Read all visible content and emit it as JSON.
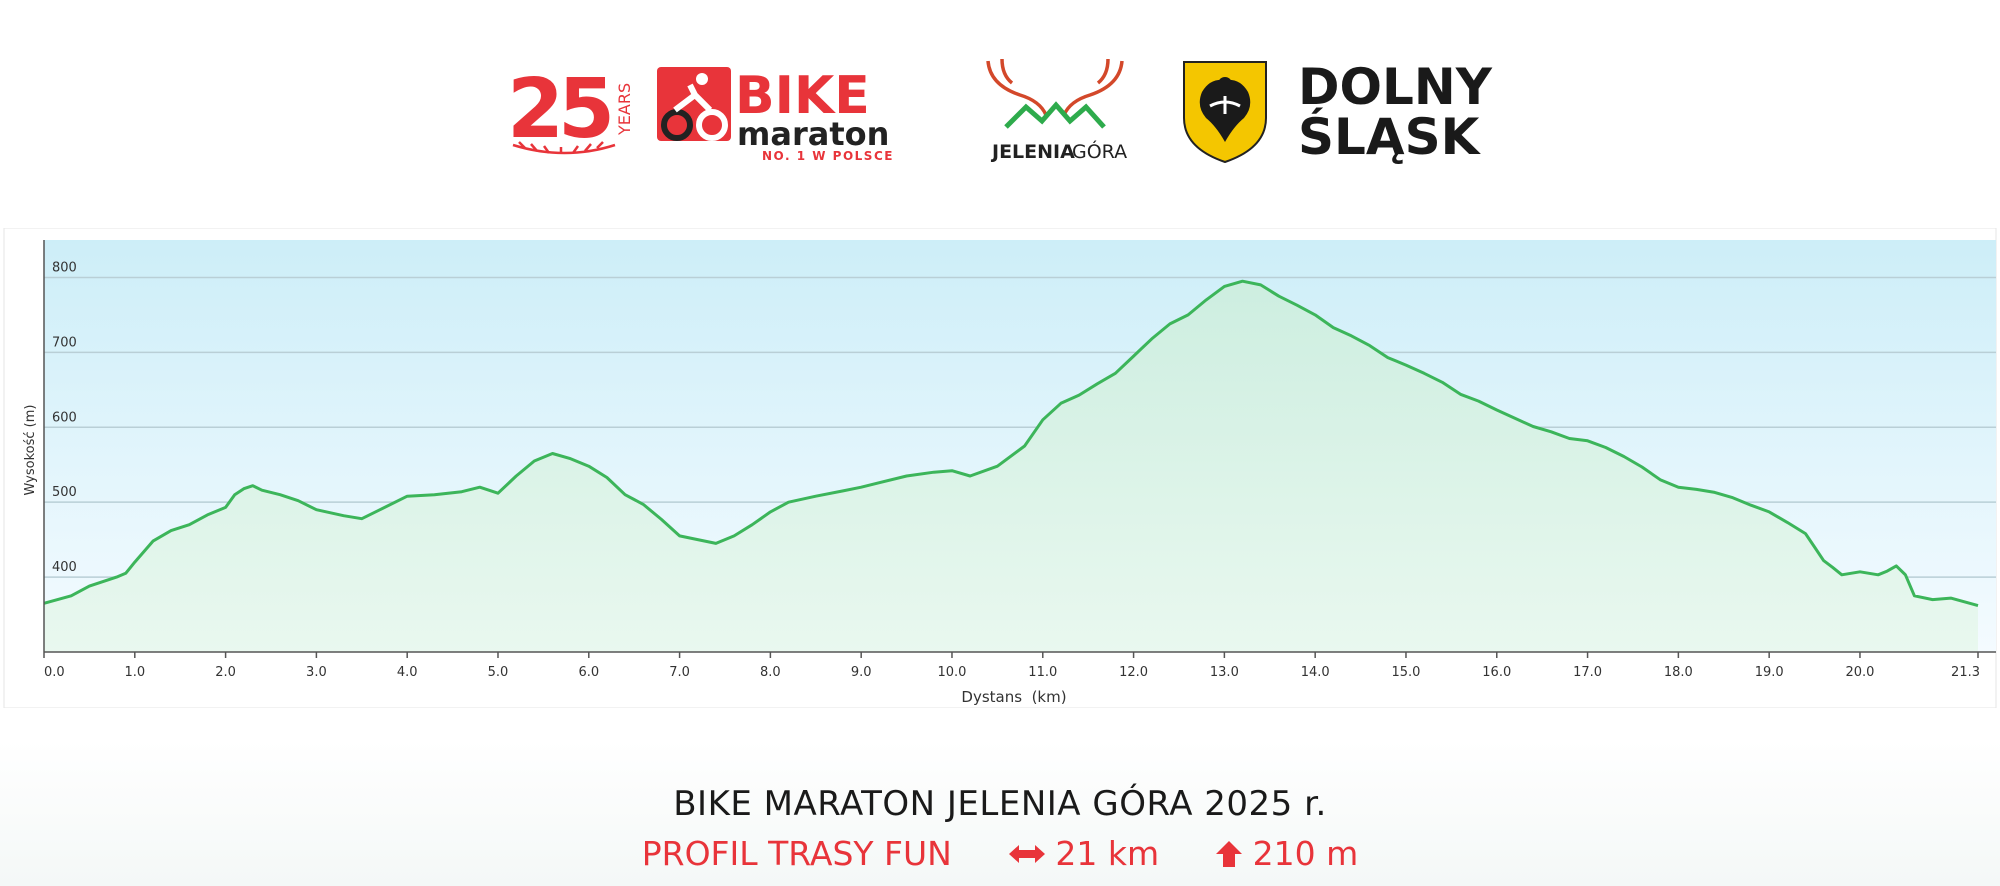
{
  "logos": {
    "years_number": "25",
    "years_word": "YEARS",
    "bike_word": "BIKE",
    "maraton_word": "maraton",
    "bike_slogan": "NO. 1 W POLSCE",
    "city_name_a": "JELENIA",
    "city_name_b": "GÓRA",
    "region_line1": "DOLNY",
    "region_line2": "ŚLĄSK"
  },
  "colors": {
    "brand_red": "#e8343a",
    "line_green": "#3cb55a",
    "sky_top": "#cdeef8",
    "sky_bottom": "#f4fbff"
  },
  "chart_data": {
    "type": "area",
    "xlabel": "Dystans  (km)",
    "ylabel": "Wysokość (m)",
    "xlim": [
      0,
      21.3
    ],
    "ylim": [
      300,
      850
    ],
    "x_ticks": [
      0,
      1,
      2,
      3,
      4,
      5,
      6,
      7,
      8,
      9,
      10,
      11,
      12,
      13,
      14,
      15,
      16,
      17,
      18,
      19,
      20,
      21.3
    ],
    "x_tick_labels": [
      "0.0",
      "1.0",
      "2.0",
      "3.0",
      "4.0",
      "5.0",
      "6.0",
      "7.0",
      "8.0",
      "9.0",
      "10.0",
      "11.0",
      "12.0",
      "13.0",
      "14.0",
      "15.0",
      "16.0",
      "17.0",
      "18.0",
      "19.0",
      "20.0",
      "21.3"
    ],
    "y_ticks": [
      400,
      500,
      600,
      700,
      800
    ],
    "y_tick_labels": [
      "400",
      "500",
      "600",
      "700",
      "800"
    ],
    "grid": true,
    "series": [
      {
        "x": [
          0,
          0.3,
          0.5,
          0.8,
          0.9,
          1.0,
          1.2,
          1.4,
          1.6,
          1.8,
          2.0,
          2.1,
          2.2,
          2.3,
          2.4,
          2.6,
          2.8,
          3.0,
          3.3,
          3.5,
          3.7,
          4.0,
          4.3,
          4.6,
          4.8,
          5.0,
          5.2,
          5.4,
          5.6,
          5.8,
          6.0,
          6.2,
          6.4,
          6.6,
          6.8,
          7.0,
          7.2,
          7.4,
          7.6,
          7.8,
          8.0,
          8.2,
          8.5,
          8.8,
          9.0,
          9.2,
          9.5,
          9.8,
          10.0,
          10.2,
          10.5,
          10.8,
          11.0,
          11.2,
          11.4,
          11.6,
          11.8,
          12.0,
          12.2,
          12.4,
          12.6,
          12.8,
          13.0,
          13.2,
          13.4,
          13.6,
          13.8,
          14.0,
          14.2,
          14.4,
          14.6,
          14.8,
          15.0,
          15.2,
          15.4,
          15.6,
          15.8,
          16.0,
          16.2,
          16.4,
          16.6,
          16.8,
          17.0,
          17.2,
          17.4,
          17.6,
          17.8,
          18.0,
          18.2,
          18.4,
          18.6,
          18.8,
          19.0,
          19.2,
          19.4,
          19.5,
          19.6,
          19.7,
          19.8,
          20.0,
          20.2,
          20.3,
          20.4,
          20.5,
          20.6,
          20.8,
          21.0,
          21.3
        ],
        "values": [
          365,
          375,
          388,
          400,
          405,
          420,
          448,
          462,
          470,
          483,
          493,
          510,
          518,
          522,
          516,
          510,
          502,
          490,
          482,
          478,
          490,
          508,
          510,
          514,
          520,
          512,
          535,
          555,
          565,
          558,
          548,
          533,
          510,
          497,
          477,
          455,
          450,
          445,
          455,
          470,
          487,
          500,
          508,
          515,
          520,
          526,
          535,
          540,
          542,
          535,
          548,
          575,
          610,
          632,
          643,
          658,
          672,
          695,
          718,
          738,
          750,
          770,
          788,
          795,
          790,
          775,
          763,
          750,
          733,
          722,
          709,
          693,
          683,
          672,
          660,
          644,
          635,
          623,
          612,
          601,
          594,
          585,
          582,
          573,
          561,
          547,
          530,
          520,
          517,
          513,
          506,
          496,
          487,
          473,
          458,
          440,
          422,
          413,
          403,
          407,
          403,
          408,
          415,
          403,
          375,
          370,
          372,
          362
        ]
      }
    ]
  },
  "footer": {
    "title": "BIKE MARATON JELENIA GÓRA 2025 r.",
    "profile": "PROFIL TRASY FUN",
    "distance": "21 km",
    "ascent": "210 m"
  }
}
